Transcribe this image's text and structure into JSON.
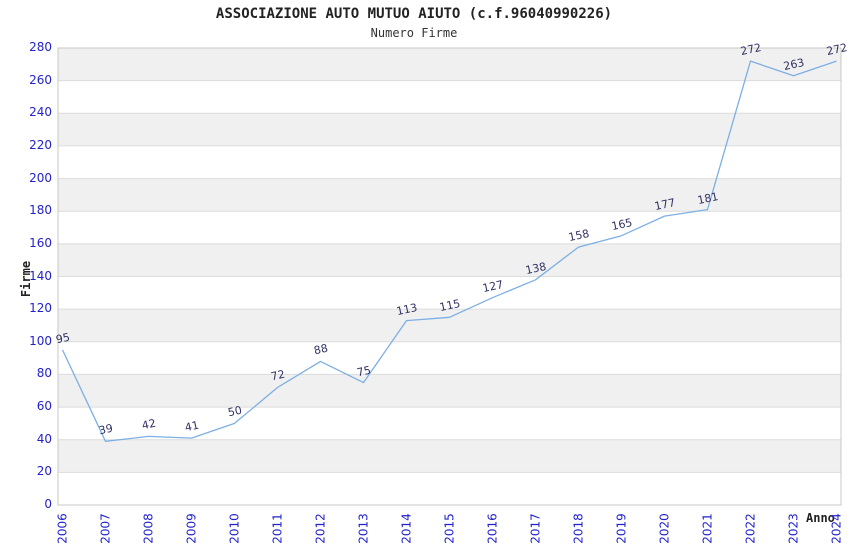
{
  "chart_data": {
    "type": "line",
    "title": "ASSOCIAZIONE AUTO MUTUO AIUTO (c.f.96040990226)",
    "subtitle": "Numero Firme",
    "xlabel": "Anno",
    "ylabel": "Firme",
    "x": [
      "2006",
      "2007",
      "2008",
      "2009",
      "2010",
      "2011",
      "2012",
      "2013",
      "2014",
      "2015",
      "2016",
      "2017",
      "2018",
      "2019",
      "2020",
      "2021",
      "2022",
      "2023",
      "2024"
    ],
    "series": [
      {
        "name": "Numero Firme",
        "values": [
          95,
          39,
          42,
          41,
          50,
          72,
          88,
          75,
          113,
          115,
          127,
          138,
          158,
          165,
          177,
          181,
          272,
          263,
          272
        ]
      }
    ],
    "ylim": [
      0,
      280
    ],
    "yticks": [
      0,
      20,
      40,
      60,
      80,
      100,
      120,
      140,
      160,
      180,
      200,
      220,
      240,
      260,
      280
    ],
    "grid": "horizontal",
    "banded_background": true,
    "legend_position": "none",
    "data_labels_shown": true,
    "colors": {
      "line": "#7dafe4",
      "tick_label": "#2222cc",
      "data_label": "#333366",
      "band": "#f0f0f0",
      "grid_line": "#dcdcdc",
      "plot_border": "#c8c8c8",
      "title": "#222222",
      "axis_title": "#222222",
      "background": "#ffffff"
    }
  }
}
